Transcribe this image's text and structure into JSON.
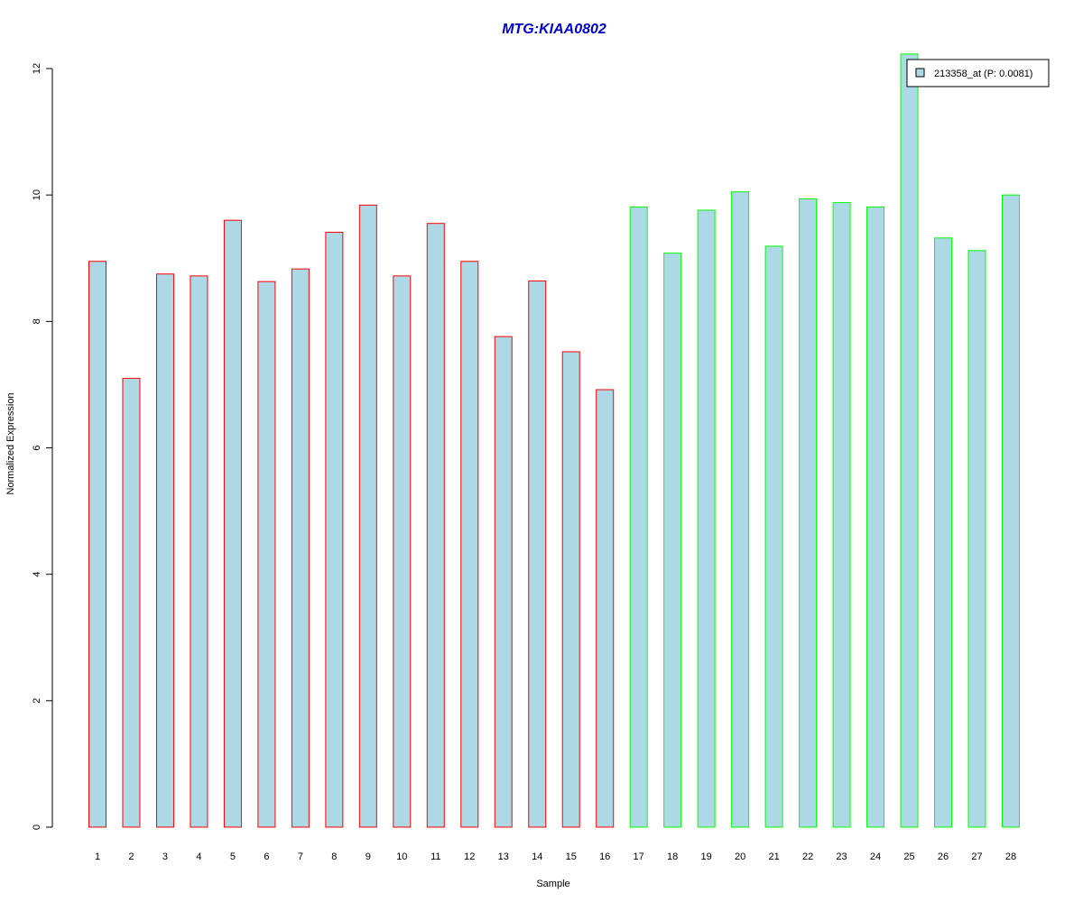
{
  "chart_data": {
    "type": "bar",
    "title": "MTG:KIAA0802",
    "xlabel": "Sample",
    "ylabel": "Normalized Expression",
    "ylim": [
      0,
      12
    ],
    "yticks": [
      "0",
      "2",
      "4",
      "6",
      "8",
      "10",
      "12"
    ],
    "grid": false,
    "legend_position": "top-right",
    "categories": [
      "1",
      "2",
      "3",
      "4",
      "5",
      "6",
      "7",
      "8",
      "9",
      "10",
      "11",
      "12",
      "13",
      "14",
      "15",
      "16",
      "17",
      "18",
      "19",
      "20",
      "21",
      "22",
      "23",
      "24",
      "25",
      "26",
      "27",
      "28"
    ],
    "series": [
      {
        "name": "213358_at (P: 0.0081)",
        "values": [
          8.95,
          7.1,
          8.75,
          8.72,
          9.6,
          8.63,
          8.83,
          9.41,
          9.84,
          8.72,
          9.55,
          8.95,
          7.76,
          8.64,
          7.52,
          6.92,
          9.81,
          9.08,
          9.76,
          10.05,
          9.19,
          9.94,
          9.88,
          9.81,
          12.23,
          9.32,
          9.12,
          10.0
        ],
        "fill_color": "#add8e6",
        "border_colors": [
          "#ff0000",
          "#ff0000",
          "#ff0000",
          "#ff0000",
          "#ff0000",
          "#ff0000",
          "#ff0000",
          "#ff0000",
          "#ff0000",
          "#ff0000",
          "#ff0000",
          "#ff0000",
          "#ff0000",
          "#ff0000",
          "#ff0000",
          "#ff0000",
          "#00ff00",
          "#00ff00",
          "#00ff00",
          "#00ff00",
          "#00ff00",
          "#00ff00",
          "#00ff00",
          "#00ff00",
          "#00ff00",
          "#00ff00",
          "#00ff00",
          "#00ff00"
        ]
      }
    ],
    "title_color": "#0000cd",
    "legend_swatch_color": "#add8e6"
  }
}
